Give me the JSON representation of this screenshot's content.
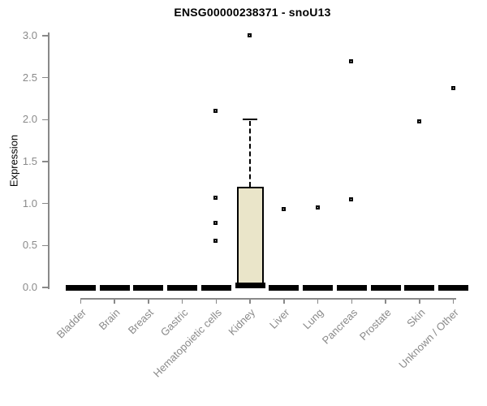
{
  "chart_data": {
    "type": "boxplot",
    "title": "ENSG00000238371 - snoU13",
    "ylabel": "Expression",
    "xlabel": "",
    "ylim": [
      0.0,
      3.0
    ],
    "yticks": [
      0.0,
      0.5,
      1.0,
      1.5,
      2.0,
      2.5,
      3.0
    ],
    "grid": false,
    "legend": "none",
    "categories": [
      "Bladder",
      "Brain",
      "Breast",
      "Gastric",
      "Hematopoietic cells",
      "Kidney",
      "Liver",
      "Lung",
      "Pancreas",
      "Prostate",
      "Skin",
      "Unknown / Other"
    ],
    "series": [
      {
        "category": "Bladder",
        "q1": 0,
        "median": 0,
        "q3": 0,
        "whisker_low": 0,
        "whisker_high": 0,
        "outliers": []
      },
      {
        "category": "Brain",
        "q1": 0,
        "median": 0,
        "q3": 0,
        "whisker_low": 0,
        "whisker_high": 0,
        "outliers": []
      },
      {
        "category": "Breast",
        "q1": 0,
        "median": 0,
        "q3": 0,
        "whisker_low": 0,
        "whisker_high": 0,
        "outliers": []
      },
      {
        "category": "Gastric",
        "q1": 0,
        "median": 0,
        "q3": 0,
        "whisker_low": 0,
        "whisker_high": 0,
        "outliers": []
      },
      {
        "category": "Hematopoietic cells",
        "q1": 0,
        "median": 0,
        "q3": 0,
        "whisker_low": 0,
        "whisker_high": 0,
        "outliers": [
          0.55,
          0.76,
          1.06,
          2.1
        ]
      },
      {
        "category": "Kidney",
        "q1": 0.02,
        "median": 0.02,
        "q3": 1.2,
        "whisker_low": 0,
        "whisker_high": 2.0,
        "outliers": [
          3.0
        ]
      },
      {
        "category": "Liver",
        "q1": 0,
        "median": 0,
        "q3": 0,
        "whisker_low": 0,
        "whisker_high": 0,
        "outliers": [
          0.93
        ]
      },
      {
        "category": "Lung",
        "q1": 0,
        "median": 0,
        "q3": 0,
        "whisker_low": 0,
        "whisker_high": 0,
        "outliers": [
          0.95
        ]
      },
      {
        "category": "Pancreas",
        "q1": 0,
        "median": 0,
        "q3": 0,
        "whisker_low": 0,
        "whisker_high": 0,
        "outliers": [
          1.05,
          2.69
        ]
      },
      {
        "category": "Prostate",
        "q1": 0,
        "median": 0,
        "q3": 0,
        "whisker_low": 0,
        "whisker_high": 0,
        "outliers": []
      },
      {
        "category": "Skin",
        "q1": 0,
        "median": 0,
        "q3": 0,
        "whisker_low": 0,
        "whisker_high": 0,
        "outliers": [
          1.97
        ]
      },
      {
        "category": "Unknown / Other",
        "q1": 0,
        "median": 0,
        "q3": 0,
        "whisker_low": 0,
        "whisker_high": 0,
        "outliers": [
          2.37
        ]
      }
    ],
    "colors": {
      "box_fill": "#EAE5C9",
      "box_border": "#000000",
      "median": "#000000",
      "outlier": "#000000",
      "axis": "#898989",
      "tick_label": "#8a8a8a",
      "title": "#000000",
      "background": "#ffffff"
    }
  }
}
